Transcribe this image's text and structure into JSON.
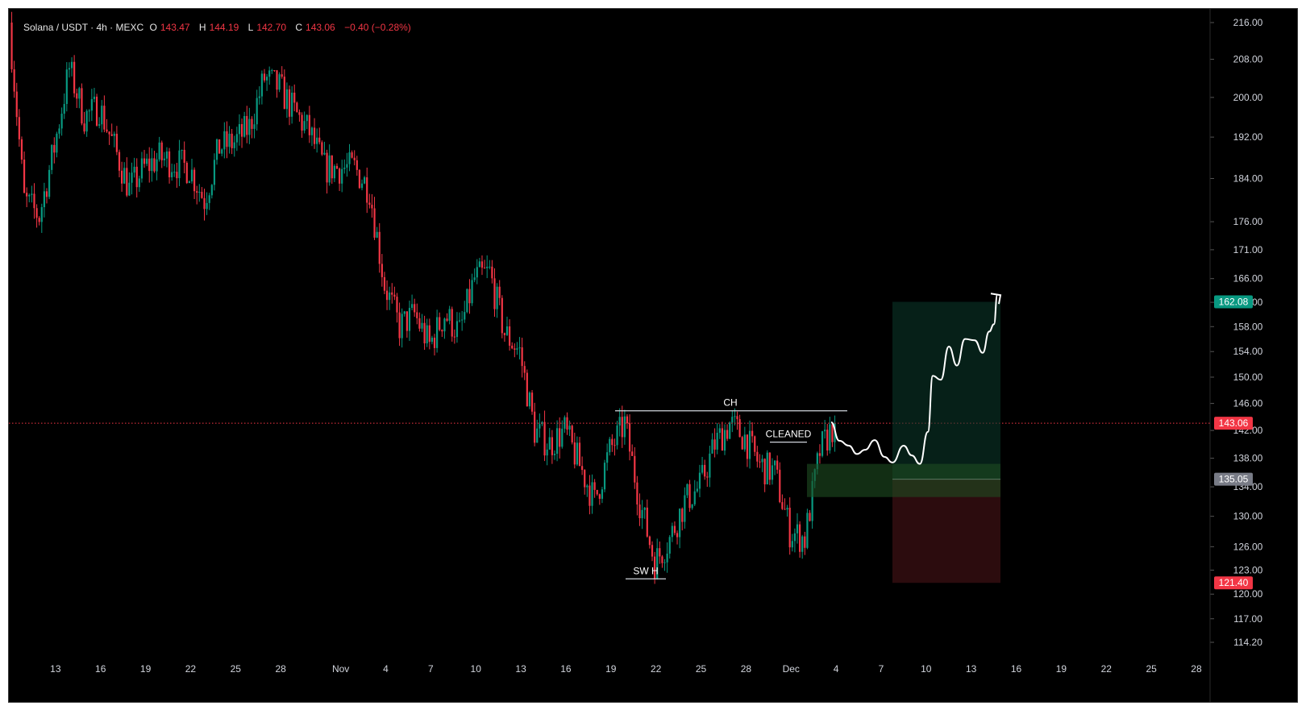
{
  "header": {
    "symbol": "Solana / USDT · 4h · MEXC",
    "open_label": "O",
    "open": "143.47",
    "high_label": "H",
    "high": "144.19",
    "low_label": "L",
    "low": "142.70",
    "close_label": "C",
    "close": "143.06",
    "change": "−0.40 (−0.28%)"
  },
  "chart_data": {
    "type": "candlestick",
    "title": "Solana / USDT · 4h · MEXC",
    "y_scale": "log",
    "ylim": [
      112,
      219
    ],
    "y_ticks": [
      "216.00",
      "208.00",
      "200.00",
      "192.00",
      "184.00",
      "176.00",
      "171.00",
      "166.00",
      "162.00",
      "158.00",
      "154.00",
      "150.00",
      "146.00",
      "142.00",
      "138.00",
      "134.00",
      "130.00",
      "126.00",
      "123.00",
      "120.00",
      "117.00",
      "114.20"
    ],
    "x_ticks": [
      "13",
      "16",
      "19",
      "22",
      "25",
      "28",
      "Nov",
      "4",
      "7",
      "10",
      "13",
      "16",
      "19",
      "22",
      "25",
      "28",
      "Dec",
      "4",
      "7",
      "10",
      "13",
      "16",
      "19",
      "22",
      "25",
      "28"
    ],
    "price_path": [
      {
        "day": "Oct 10",
        "price": 216
      },
      {
        "day": "Oct 11",
        "price": 180
      },
      {
        "day": "Oct 12",
        "price": 177
      },
      {
        "day": "Oct 13",
        "price": 190
      },
      {
        "day": "Oct 14",
        "price": 206
      },
      {
        "day": "Oct 15",
        "price": 196
      },
      {
        "day": "Oct 16",
        "price": 198
      },
      {
        "day": "Oct 17",
        "price": 190
      },
      {
        "day": "Oct 18",
        "price": 182
      },
      {
        "day": "Oct 19",
        "price": 186
      },
      {
        "day": "Oct 20",
        "price": 188
      },
      {
        "day": "Oct 21",
        "price": 187
      },
      {
        "day": "Oct 22",
        "price": 186
      },
      {
        "day": "Oct 23",
        "price": 180
      },
      {
        "day": "Oct 24",
        "price": 190
      },
      {
        "day": "Oct 25",
        "price": 191
      },
      {
        "day": "Oct 26",
        "price": 194
      },
      {
        "day": "Oct 27",
        "price": 204
      },
      {
        "day": "Oct 28",
        "price": 202
      },
      {
        "day": "Oct 29",
        "price": 197
      },
      {
        "day": "Oct 30",
        "price": 193
      },
      {
        "day": "Oct 31",
        "price": 186
      },
      {
        "day": "Nov 1",
        "price": 186
      },
      {
        "day": "Nov 2",
        "price": 186
      },
      {
        "day": "Nov 3",
        "price": 182
      },
      {
        "day": "Nov 4",
        "price": 165
      },
      {
        "day": "Nov 5",
        "price": 158
      },
      {
        "day": "Nov 6",
        "price": 160
      },
      {
        "day": "Nov 7",
        "price": 155
      },
      {
        "day": "Nov 8",
        "price": 160
      },
      {
        "day": "Nov 9",
        "price": 157
      },
      {
        "day": "Nov 10",
        "price": 166
      },
      {
        "day": "Nov 11",
        "price": 167
      },
      {
        "day": "Nov 12",
        "price": 157
      },
      {
        "day": "Nov 13",
        "price": 154
      },
      {
        "day": "Nov 14",
        "price": 142
      },
      {
        "day": "Nov 15",
        "price": 140
      },
      {
        "day": "Nov 16",
        "price": 142
      },
      {
        "day": "Nov 17",
        "price": 137
      },
      {
        "day": "Nov 18",
        "price": 132
      },
      {
        "day": "Nov 19",
        "price": 139
      },
      {
        "day": "Nov 20",
        "price": 143
      },
      {
        "day": "Nov 21",
        "price": 132
      },
      {
        "day": "Nov 22",
        "price": 124
      },
      {
        "day": "Nov 23",
        "price": 127
      },
      {
        "day": "Nov 24",
        "price": 132
      },
      {
        "day": "Nov 25",
        "price": 134
      },
      {
        "day": "Nov 26",
        "price": 140
      },
      {
        "day": "Nov 27",
        "price": 143
      },
      {
        "day": "Nov 28",
        "price": 141
      },
      {
        "day": "Nov 29",
        "price": 137
      },
      {
        "day": "Nov 30",
        "price": 136
      },
      {
        "day": "Dec 1",
        "price": 128
      },
      {
        "day": "Dec 2",
        "price": 127
      },
      {
        "day": "Dec 3",
        "price": 139
      },
      {
        "day": "Dec 4",
        "price": 143.06
      }
    ],
    "last_price": 143.06,
    "target_price": 162.08,
    "entry_price": 135.05,
    "stop_price": 121.4,
    "annotations": [
      "CH",
      "CLEANED",
      "SW H"
    ],
    "colors": {
      "up": "#089981",
      "down": "#f23645",
      "background": "#000000"
    }
  },
  "price_tags": {
    "target": "162.08",
    "last": "143.06",
    "entry": "135.05",
    "stop": "121.40"
  },
  "annotations": {
    "ch": "CH",
    "cleaned": "CLEANED",
    "swh": "SW H"
  }
}
